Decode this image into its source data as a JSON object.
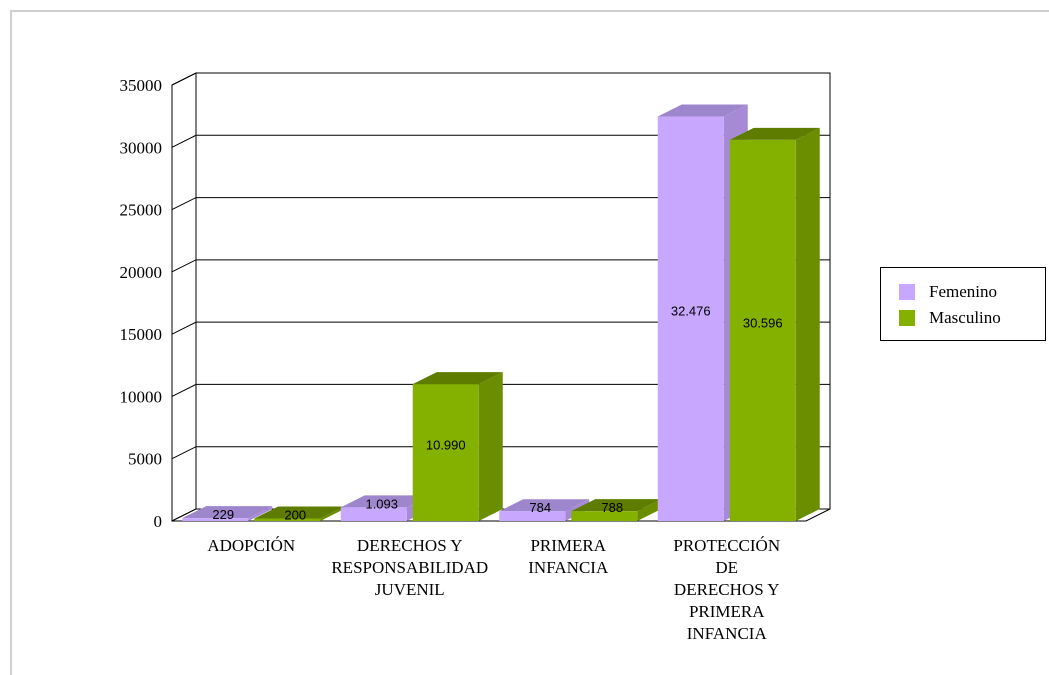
{
  "chart_data": {
    "type": "bar",
    "title": "",
    "xlabel": "",
    "ylabel": "",
    "ylim": [
      0,
      35000
    ],
    "yticks": [
      "0",
      "5000",
      "10000",
      "15000",
      "20000",
      "25000",
      "30000",
      "35000"
    ],
    "categories": [
      [
        "ADOPCIÓN"
      ],
      [
        "DERECHOS Y",
        "RESPONSABILIDAD",
        "JUVENIL"
      ],
      [
        "PRIMERA",
        "INFANCIA"
      ],
      [
        "PROTECCIÓN",
        "DE",
        "DERECHOS Y",
        "PRIMERA",
        "INFANCIA"
      ]
    ],
    "series": [
      {
        "name": "Femenino",
        "values": [
          229,
          1093,
          784,
          32476
        ],
        "labels": [
          "229",
          "1.093",
          "784",
          "32.476"
        ],
        "color": "#c8a8ff",
        "side_color": "#a68ad6",
        "top_color": "#9d86cc"
      },
      {
        "name": "Masculino",
        "values": [
          200,
          10990,
          788,
          30596
        ],
        "labels": [
          "200",
          "10.990",
          "788",
          "30.596"
        ],
        "color": "#84b000",
        "side_color": "#6a8e00",
        "top_color": "#5e7d00"
      }
    ],
    "grid": true,
    "legend_position": "right"
  }
}
